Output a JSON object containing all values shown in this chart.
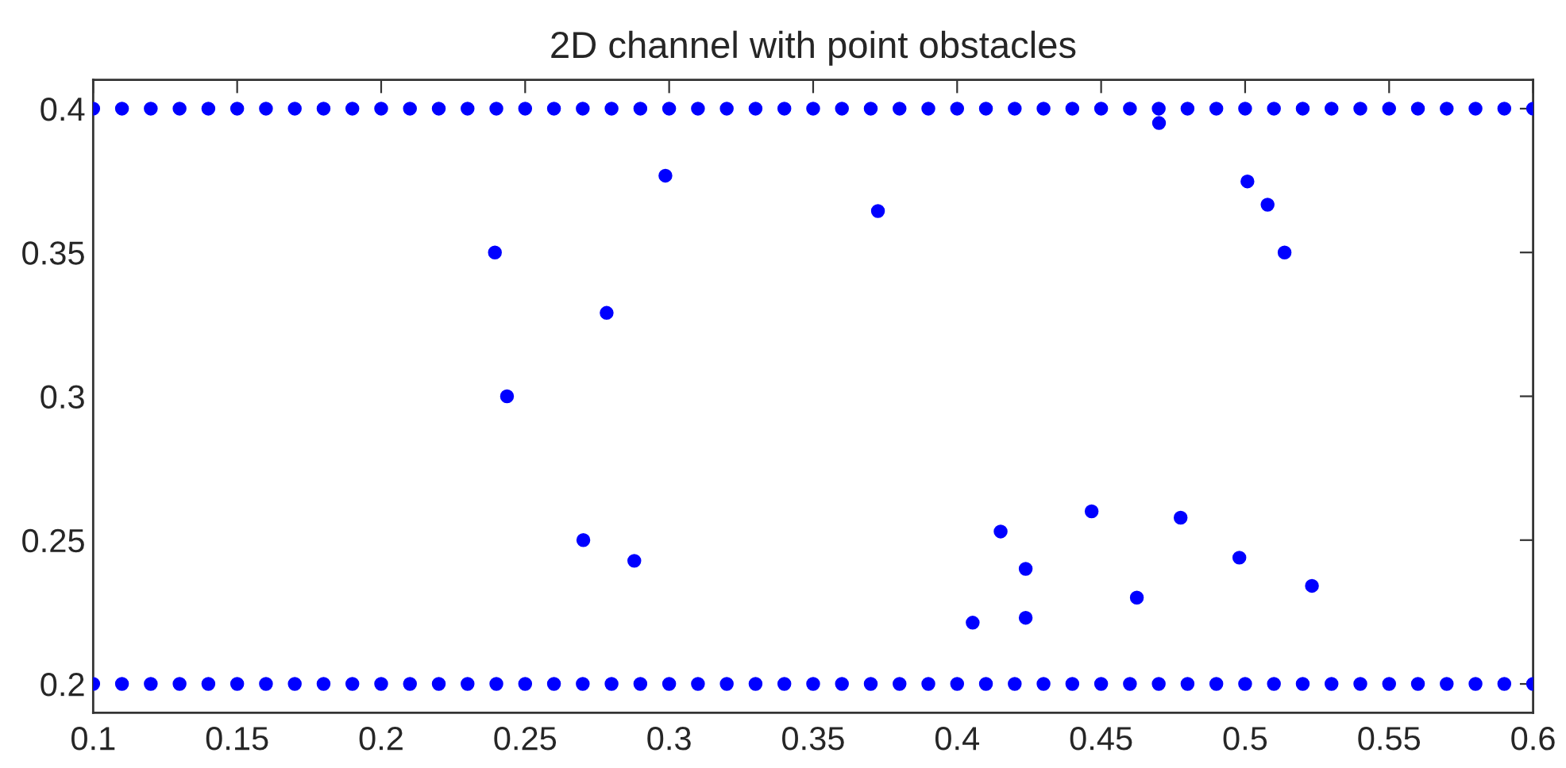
{
  "chart_data": {
    "type": "scatter",
    "title": "2D channel with point obstacles",
    "series": [
      {
        "color": "#0000ff",
        "marker": "circle",
        "x": [
          0.1,
          0.11,
          0.12,
          0.13,
          0.14,
          0.15,
          0.16,
          0.17,
          0.18,
          0.19,
          0.2,
          0.21,
          0.22,
          0.23,
          0.24,
          0.25,
          0.26,
          0.27,
          0.28,
          0.29,
          0.3,
          0.31,
          0.32,
          0.33,
          0.34,
          0.35,
          0.36,
          0.37,
          0.38,
          0.39,
          0.4,
          0.41,
          0.42,
          0.43,
          0.44,
          0.45,
          0.46,
          0.47,
          0.48,
          0.49,
          0.5,
          0.51,
          0.52,
          0.53,
          0.54,
          0.55,
          0.56,
          0.57,
          0.58,
          0.59,
          0.6,
          0.1,
          0.11,
          0.12,
          0.13,
          0.14,
          0.15,
          0.16,
          0.17,
          0.18,
          0.19,
          0.2,
          0.21,
          0.22,
          0.23,
          0.24,
          0.25,
          0.26,
          0.27,
          0.28,
          0.29,
          0.3,
          0.31,
          0.32,
          0.33,
          0.34,
          0.35,
          0.36,
          0.37,
          0.38,
          0.39,
          0.4,
          0.41,
          0.42,
          0.43,
          0.44,
          0.45,
          0.46,
          0.47,
          0.48,
          0.49,
          0.5,
          0.51,
          0.52,
          0.53,
          0.54,
          0.55,
          0.56,
          0.57,
          0.58,
          0.59,
          0.6,
          0.2987,
          0.3725,
          0.2395,
          0.2783,
          0.2437,
          0.2702,
          0.2879,
          0.4701,
          0.5008,
          0.5078,
          0.5137,
          0.4054,
          0.4151,
          0.4238,
          0.4238,
          0.4467,
          0.4624,
          0.4776,
          0.498,
          0.5232
        ],
        "values": [
          0.4,
          0.4,
          0.4,
          0.4,
          0.4,
          0.4,
          0.4,
          0.4,
          0.4,
          0.4,
          0.4,
          0.4,
          0.4,
          0.4,
          0.4,
          0.4,
          0.4,
          0.4,
          0.4,
          0.4,
          0.4,
          0.4,
          0.4,
          0.4,
          0.4,
          0.4,
          0.4,
          0.4,
          0.4,
          0.4,
          0.4,
          0.4,
          0.4,
          0.4,
          0.4,
          0.4,
          0.4,
          0.4,
          0.4,
          0.4,
          0.4,
          0.4,
          0.4,
          0.4,
          0.4,
          0.4,
          0.4,
          0.4,
          0.4,
          0.4,
          0.4,
          0.2,
          0.2,
          0.2,
          0.2,
          0.2,
          0.2,
          0.2,
          0.2,
          0.2,
          0.2,
          0.2,
          0.2,
          0.2,
          0.2,
          0.2,
          0.2,
          0.2,
          0.2,
          0.2,
          0.2,
          0.2,
          0.2,
          0.2,
          0.2,
          0.2,
          0.2,
          0.2,
          0.2,
          0.2,
          0.2,
          0.2,
          0.2,
          0.2,
          0.2,
          0.2,
          0.2,
          0.2,
          0.2,
          0.2,
          0.2,
          0.2,
          0.2,
          0.2,
          0.2,
          0.2,
          0.2,
          0.2,
          0.2,
          0.2,
          0.2,
          0.2,
          0.3767,
          0.3644,
          0.35,
          0.329,
          0.3,
          0.25,
          0.2428,
          0.395,
          0.3747,
          0.3666,
          0.35,
          0.2213,
          0.253,
          0.24,
          0.223,
          0.26,
          0.23,
          0.2578,
          0.2439,
          0.2341
        ]
      }
    ],
    "xlim": [
      0.1,
      0.6
    ],
    "ylim": [
      0.19,
      0.41
    ],
    "xticks": [
      0.1,
      0.15,
      0.2,
      0.25,
      0.3,
      0.35,
      0.4,
      0.45,
      0.5,
      0.55,
      0.6
    ],
    "yticks": [
      0.2,
      0.25,
      0.3,
      0.35,
      0.4
    ],
    "grid": false,
    "legend": false
  }
}
